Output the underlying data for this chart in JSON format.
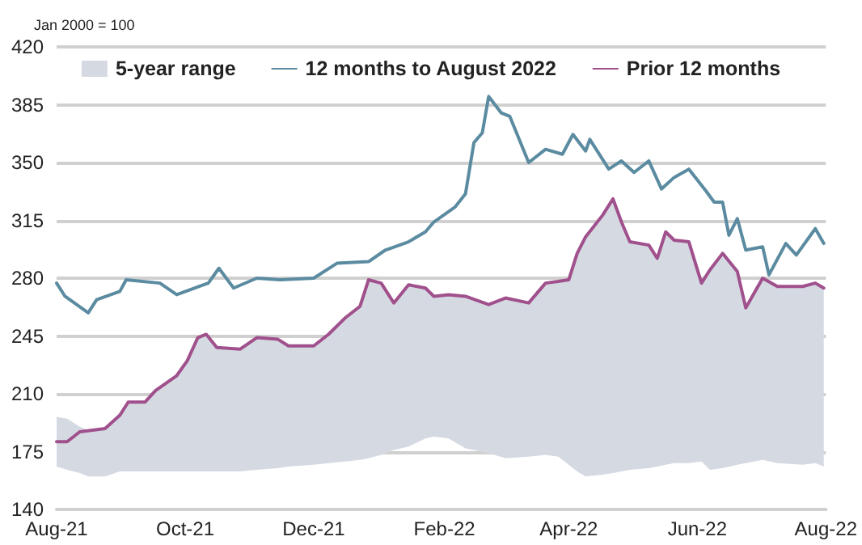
{
  "chart_data": {
    "type": "line",
    "ylabel": "Jan 2000 = 100",
    "xlim": [
      "2021-08-01",
      "2022-08-01"
    ],
    "xticks": [
      {
        "value": "2021-08-01",
        "label": "Aug-21"
      },
      {
        "value": "2021-10-01",
        "label": "Oct-21"
      },
      {
        "value": "2021-12-01",
        "label": "Dec-21"
      },
      {
        "value": "2022-02-01",
        "label": "Feb-22"
      },
      {
        "value": "2022-04-01",
        "label": "Apr-22"
      },
      {
        "value": "2022-06-01",
        "label": "Jun-22"
      },
      {
        "value": "2022-08-01",
        "label": "Aug-22"
      }
    ],
    "ylim": [
      140,
      420
    ],
    "yticks": [
      140,
      175,
      210,
      245,
      280,
      315,
      350,
      385,
      420
    ],
    "grid": "y",
    "legend": "top",
    "marker": "none",
    "line_style": "solid",
    "series": [
      {
        "name": "5-year range",
        "type": "area",
        "color": "#d5dae2",
        "x": [
          "2021-08-01",
          "2021-08-06",
          "2021-08-12",
          "2021-08-16",
          "2021-08-24",
          "2021-08-31",
          "2021-09-04",
          "2021-09-12",
          "2021-09-17",
          "2021-09-27",
          "2021-10-02",
          "2021-10-07",
          "2021-10-11",
          "2021-10-16",
          "2021-10-27",
          "2021-11-04",
          "2021-11-14",
          "2021-11-19",
          "2021-12-01",
          "2021-12-08",
          "2021-12-16",
          "2021-12-23",
          "2021-12-27",
          "2022-01-02",
          "2022-01-08",
          "2022-01-15",
          "2022-01-23",
          "2022-01-27",
          "2022-02-03",
          "2022-02-11",
          "2022-02-22",
          "2022-03-02",
          "2022-03-13",
          "2022-03-21",
          "2022-03-27",
          "2022-04-01",
          "2022-04-05",
          "2022-04-09",
          "2022-04-17",
          "2022-04-22",
          "2022-04-26",
          "2022-04-30",
          "2022-05-09",
          "2022-05-13",
          "2022-05-17",
          "2022-05-21",
          "2022-05-28",
          "2022-06-03",
          "2022-06-07",
          "2022-06-13",
          "2022-06-20",
          "2022-06-24",
          "2022-07-02",
          "2022-07-09",
          "2022-07-21",
          "2022-07-27",
          "2022-07-31"
        ],
        "lower": [
          166,
          164,
          162,
          160,
          160,
          163,
          163,
          163,
          163,
          163,
          163,
          163,
          163,
          163,
          163,
          164,
          165,
          166,
          167,
          168,
          169,
          170,
          171,
          173,
          176,
          178,
          183,
          184,
          183,
          177,
          174,
          171,
          172,
          173,
          172,
          167,
          163,
          160,
          161,
          162,
          163,
          164,
          165,
          166,
          167,
          168,
          168,
          169,
          164,
          165,
          167,
          168,
          170,
          168,
          167,
          168,
          166
        ],
        "values": [
          null,
          null,
          null,
          null,
          null,
          null,
          null,
          null,
          null,
          null,
          null,
          null,
          null,
          null,
          null,
          null,
          null,
          null,
          null,
          null,
          null,
          null,
          null,
          null,
          null,
          null,
          null,
          null,
          null,
          null,
          null,
          null,
          null,
          null,
          null,
          null,
          null,
          null,
          null,
          null,
          null,
          null,
          null,
          null,
          null,
          null,
          null,
          null,
          null,
          null,
          null,
          null,
          null,
          null,
          null,
          null,
          null
        ],
        "upper": [
          196,
          195,
          190,
          188,
          189,
          197,
          205,
          205,
          212,
          221,
          230,
          244,
          246,
          238,
          237,
          244,
          243,
          239,
          239,
          246,
          256,
          263,
          279,
          277,
          265,
          276,
          274,
          269,
          270,
          269,
          264,
          268,
          265,
          277,
          278,
          279,
          295,
          305,
          318,
          328,
          314,
          302,
          300,
          292,
          308,
          303,
          302,
          277,
          285,
          295,
          284,
          262,
          280,
          275,
          275,
          277,
          274
        ]
      },
      {
        "name": "12 months to August 2022",
        "color": "#5b8ba0",
        "x": [
          "2021-08-01",
          "2021-08-05",
          "2021-08-16",
          "2021-08-20",
          "2021-08-31",
          "2021-09-03",
          "2021-09-19",
          "2021-09-27",
          "2021-10-12",
          "2021-10-17",
          "2021-10-24",
          "2021-11-04",
          "2021-11-15",
          "2021-12-01",
          "2021-12-12",
          "2021-12-27",
          "2022-01-04",
          "2022-01-15",
          "2022-01-23",
          "2022-01-27",
          "2022-02-06",
          "2022-02-11",
          "2022-02-15",
          "2022-02-19",
          "2022-02-22",
          "2022-02-28",
          "2022-03-04",
          "2022-03-13",
          "2022-03-21",
          "2022-03-29",
          "2022-04-03",
          "2022-04-09",
          "2022-04-11",
          "2022-04-20",
          "2022-04-26",
          "2022-05-02",
          "2022-05-09",
          "2022-05-15",
          "2022-05-21",
          "2022-05-28",
          "2022-06-05",
          "2022-06-09",
          "2022-06-13",
          "2022-06-16",
          "2022-06-20",
          "2022-06-24",
          "2022-07-02",
          "2022-07-05",
          "2022-07-13",
          "2022-07-18",
          "2022-07-27",
          "2022-07-31"
        ],
        "values": [
          277,
          269,
          259,
          267,
          272,
          279,
          277,
          270,
          277,
          286,
          274,
          280,
          279,
          280,
          289,
          290,
          297,
          302,
          308,
          314,
          323,
          331,
          362,
          368,
          390,
          380,
          378,
          350,
          358,
          355,
          367,
          357,
          364,
          346,
          351,
          344,
          351,
          334,
          341,
          346,
          333,
          326,
          326,
          306,
          316,
          297,
          299,
          282,
          301,
          294,
          310,
          301
        ]
      },
      {
        "name": "Prior 12 months",
        "color": "#a0508c",
        "x": [
          "2021-08-01",
          "2021-08-06",
          "2021-08-12",
          "2021-08-24",
          "2021-08-31",
          "2021-09-04",
          "2021-09-12",
          "2021-09-17",
          "2021-09-27",
          "2021-10-02",
          "2021-10-07",
          "2021-10-11",
          "2021-10-16",
          "2021-10-27",
          "2021-11-04",
          "2021-11-14",
          "2021-11-19",
          "2021-12-01",
          "2021-12-08",
          "2021-12-16",
          "2021-12-23",
          "2021-12-27",
          "2022-01-02",
          "2022-01-08",
          "2022-01-15",
          "2022-01-23",
          "2022-01-27",
          "2022-02-03",
          "2022-02-11",
          "2022-02-22",
          "2022-03-02",
          "2022-03-13",
          "2022-03-21",
          "2022-03-27",
          "2022-04-01",
          "2022-04-05",
          "2022-04-09",
          "2022-04-17",
          "2022-04-22",
          "2022-04-26",
          "2022-04-30",
          "2022-05-09",
          "2022-05-13",
          "2022-05-17",
          "2022-05-21",
          "2022-05-28",
          "2022-06-03",
          "2022-06-07",
          "2022-06-13",
          "2022-06-20",
          "2022-06-24",
          "2022-07-02",
          "2022-07-09",
          "2022-07-21",
          "2022-07-27",
          "2022-07-31"
        ],
        "values": [
          181,
          181,
          187,
          189,
          197,
          205,
          205,
          212,
          221,
          230,
          244,
          246,
          238,
          237,
          244,
          243,
          239,
          239,
          246,
          256,
          263,
          279,
          277,
          265,
          276,
          274,
          269,
          270,
          269,
          264,
          268,
          265,
          277,
          278,
          279,
          295,
          305,
          318,
          328,
          314,
          302,
          300,
          292,
          308,
          303,
          302,
          277,
          285,
          295,
          284,
          262,
          280,
          275,
          275,
          277,
          274
        ]
      }
    ]
  }
}
